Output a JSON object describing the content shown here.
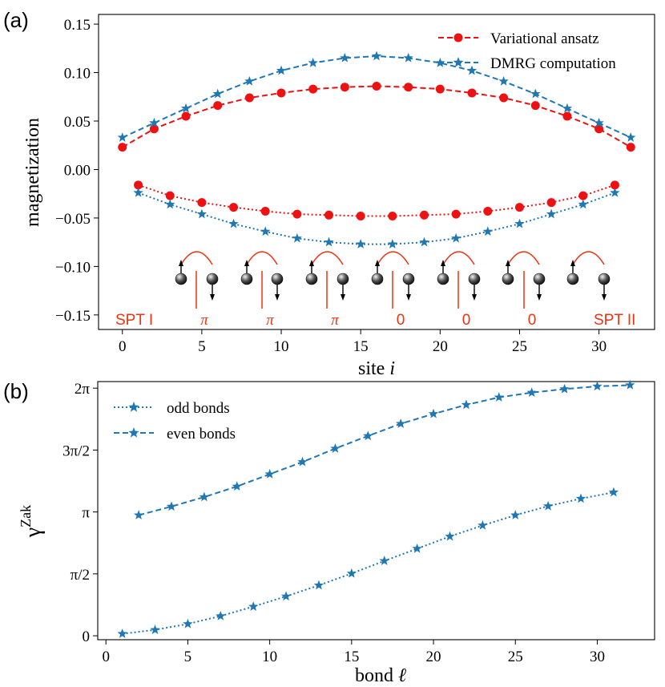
{
  "chart_data": [
    {
      "type": "line",
      "panel_label": "(a)",
      "xlabel": "site",
      "xlabel_var": "i",
      "ylabel": "magnetization",
      "xlim": [
        -1.5,
        33.5
      ],
      "ylim": [
        -0.165,
        0.16
      ],
      "xticks": [
        0,
        5,
        10,
        15,
        20,
        25,
        30
      ],
      "yticks": [
        -0.15,
        -0.1,
        -0.05,
        0.0,
        0.05,
        0.1,
        0.15
      ],
      "ytick_labels": [
        "−0.15",
        "−0.10",
        "−0.05",
        "0.00",
        "0.05",
        "0.10",
        "0.15"
      ],
      "legend_position": "top-right",
      "series": [
        {
          "name": "Variational ansatz",
          "color": "#ee1111",
          "marker": "circle",
          "linestyle": "dashed",
          "x": [
            0,
            2,
            4,
            6,
            8,
            10,
            12,
            14,
            16,
            18,
            20,
            22,
            24,
            26,
            28,
            30,
            32
          ],
          "y": [
            0.023,
            0.042,
            0.055,
            0.066,
            0.074,
            0.079,
            0.083,
            0.085,
            0.086,
            0.085,
            0.083,
            0.079,
            0.074,
            0.066,
            0.055,
            0.042,
            0.023
          ]
        },
        {
          "name": "DMRG computation",
          "color": "#1f77b4",
          "marker": "star",
          "linestyle": "dashed",
          "x": [
            0,
            2,
            4,
            6,
            8,
            10,
            12,
            14,
            16,
            18,
            20,
            22,
            24,
            26,
            28,
            30,
            32
          ],
          "y": [
            0.033,
            0.048,
            0.063,
            0.078,
            0.091,
            0.102,
            0.11,
            0.115,
            0.117,
            0.115,
            0.11,
            0.102,
            0.091,
            0.078,
            0.063,
            0.048,
            0.033
          ]
        },
        {
          "name": "Variational ansatz (odd sites)",
          "legend": false,
          "color": "#ee1111",
          "marker": "circle",
          "linestyle": "dotted",
          "x": [
            1,
            3,
            5,
            7,
            9,
            11,
            13,
            15,
            17,
            19,
            21,
            23,
            25,
            27,
            29,
            31
          ],
          "y": [
            -0.016,
            -0.027,
            -0.034,
            -0.039,
            -0.043,
            -0.046,
            -0.047,
            -0.048,
            -0.048,
            -0.047,
            -0.046,
            -0.043,
            -0.039,
            -0.034,
            -0.027,
            -0.016
          ]
        },
        {
          "name": "DMRG computation (odd sites)",
          "legend": false,
          "color": "#1f77b4",
          "marker": "star",
          "linestyle": "dotted",
          "x": [
            1,
            3,
            5,
            7,
            9,
            11,
            13,
            15,
            17,
            19,
            21,
            23,
            25,
            27,
            29,
            31
          ],
          "y": [
            -0.024,
            -0.036,
            -0.046,
            -0.056,
            -0.064,
            -0.071,
            -0.075,
            -0.077,
            -0.077,
            -0.075,
            -0.071,
            -0.064,
            -0.056,
            -0.046,
            -0.036,
            -0.024
          ]
        }
      ],
      "annotations": {
        "left_phase": "SPT I",
        "right_phase": "SPT II",
        "bond_phases": [
          "π",
          "π",
          "π",
          "0",
          "0",
          "0"
        ],
        "accent_color": "#ee3311"
      }
    },
    {
      "type": "line",
      "panel_label": "(b)",
      "xlabel": "bond",
      "xlabel_var": "ℓ",
      "ylabel_symbol": "γ",
      "ylabel_superscript": "Zak",
      "xlim": [
        -0.5,
        33.5
      ],
      "ylim": [
        -0.1,
        6.45
      ],
      "xticks": [
        0,
        5,
        10,
        15,
        20,
        25,
        30
      ],
      "yticks": [
        0,
        1.5708,
        3.1416,
        4.7124,
        6.2832
      ],
      "ytick_labels": [
        "0",
        "π/2",
        "π",
        "3π/2",
        "2π"
      ],
      "legend_position": "top-left",
      "series": [
        {
          "name": "odd bonds",
          "color": "#1f77b4",
          "marker": "star",
          "linestyle": "dotted",
          "x": [
            1,
            3,
            5,
            7,
            9,
            11,
            13,
            15,
            17,
            19,
            21,
            23,
            25,
            27,
            29,
            31
          ],
          "y": [
            0.05,
            0.15,
            0.3,
            0.5,
            0.74,
            1.0,
            1.28,
            1.58,
            1.9,
            2.21,
            2.52,
            2.8,
            3.06,
            3.29,
            3.48,
            3.64
          ]
        },
        {
          "name": "even bonds",
          "color": "#1f77b4",
          "marker": "star",
          "linestyle": "dashed",
          "x": [
            2,
            4,
            6,
            8,
            10,
            12,
            14,
            16,
            18,
            20,
            22,
            24,
            26,
            28,
            30,
            32
          ],
          "y": [
            3.06,
            3.28,
            3.52,
            3.79,
            4.1,
            4.41,
            4.75,
            5.07,
            5.38,
            5.63,
            5.86,
            6.05,
            6.17,
            6.26,
            6.33,
            6.36
          ]
        }
      ]
    }
  ]
}
